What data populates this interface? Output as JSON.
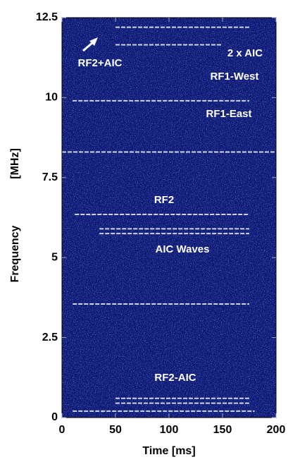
{
  "chart_data": {
    "type": "spectrogram",
    "x_label": "Time  [ms]",
    "y_label": "Frequency",
    "y_unit": "[MHz]",
    "xlim": [
      0,
      200
    ],
    "xticks": [
      0,
      50,
      100,
      150,
      200
    ],
    "ylim": [
      0,
      12.5
    ],
    "yticks": [
      0,
      2.5,
      5,
      7.5,
      10,
      12.5
    ],
    "background": "#0a1670",
    "color": "#ffffff",
    "annotations": [
      "RF2+AIC",
      "2 x AIC",
      "RF1-West",
      "RF1-East",
      "RF2",
      "AIC Waves",
      "RF2-AIC"
    ],
    "bands": [
      {
        "freq": 12.2,
        "start": 50,
        "end": 175
      },
      {
        "freq": 11.65,
        "start": 50,
        "end": 150
      },
      {
        "freq": 9.9,
        "start": 10,
        "end": 175
      },
      {
        "freq": 8.3,
        "start": 0,
        "end": 200
      },
      {
        "freq": 6.35,
        "start": 12,
        "end": 175
      },
      {
        "freq": 5.9,
        "start": 35,
        "end": 175
      },
      {
        "freq": 5.75,
        "start": 35,
        "end": 175
      },
      {
        "freq": 3.55,
        "start": 10,
        "end": 175
      },
      {
        "freq": 0.6,
        "start": 50,
        "end": 175
      },
      {
        "freq": 0.45,
        "start": 50,
        "end": 175
      },
      {
        "freq": 0.2,
        "start": 10,
        "end": 180
      }
    ]
  }
}
